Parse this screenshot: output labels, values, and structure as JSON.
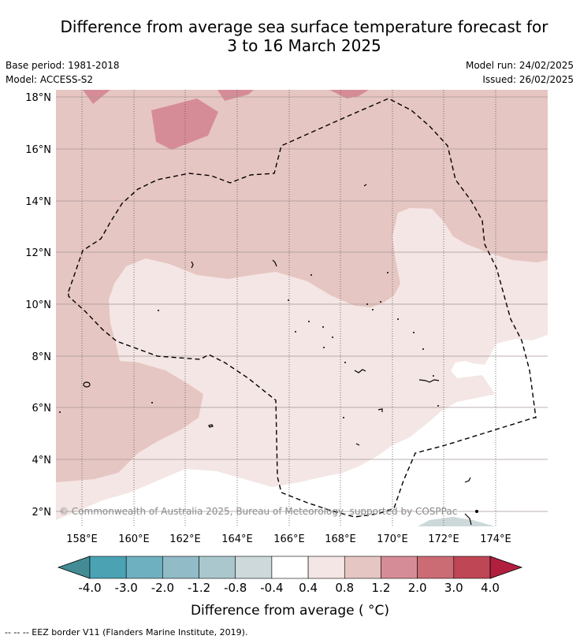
{
  "title": {
    "line1": "Difference from average sea surface temperature forecast for",
    "line2": "3 to 16 March 2025"
  },
  "meta": {
    "base_period": "Base period: 1981-2018",
    "model": "Model: ACCESS-S2",
    "model_run": "Model run: 24/02/2025",
    "issued": "Issued: 26/02/2025"
  },
  "map": {
    "lon_ticks": [
      "158°E",
      "160°E",
      "162°E",
      "164°E",
      "166°E",
      "168°E",
      "170°E",
      "172°E",
      "174°E"
    ],
    "lat_ticks": [
      "18°N",
      "16°N",
      "14°N",
      "12°N",
      "10°N",
      "8°N",
      "6°N",
      "4°N",
      "2°N"
    ],
    "copyright": "© Commonwealth of Australia 2025, Bureau of Meteorology, supported by COSPPac",
    "colors": {
      "band_0_4_to_0_8": "#f4e6e5",
      "band_0_8_to_1_2": "#e6c6c2",
      "band_1_2_to_2_0": "#d68c96",
      "band_neg_0_4_to_neg_0_8": "#ccd8da"
    }
  },
  "colorbar": {
    "labels": [
      "-4.0",
      "-3.0",
      "-2.0",
      "-1.2",
      "-0.8",
      "-0.4",
      "0.4",
      "0.8",
      "1.2",
      "2.0",
      "3.0",
      "4.0"
    ],
    "colors": [
      "#438c96",
      "#4aa2b3",
      "#6fb0c0",
      "#91bbc6",
      "#a9c7cc",
      "#cdd9db",
      "#ffffff",
      "#f4e6e5",
      "#e6c6c2",
      "#d68c96",
      "#cb6b74",
      "#bf4655",
      "#b11f3f"
    ],
    "label": "Difference from average ( °C)"
  },
  "legend": {
    "eez": "--  --  -- EEZ border V11 (Flanders Marine Institute, 2019)."
  }
}
